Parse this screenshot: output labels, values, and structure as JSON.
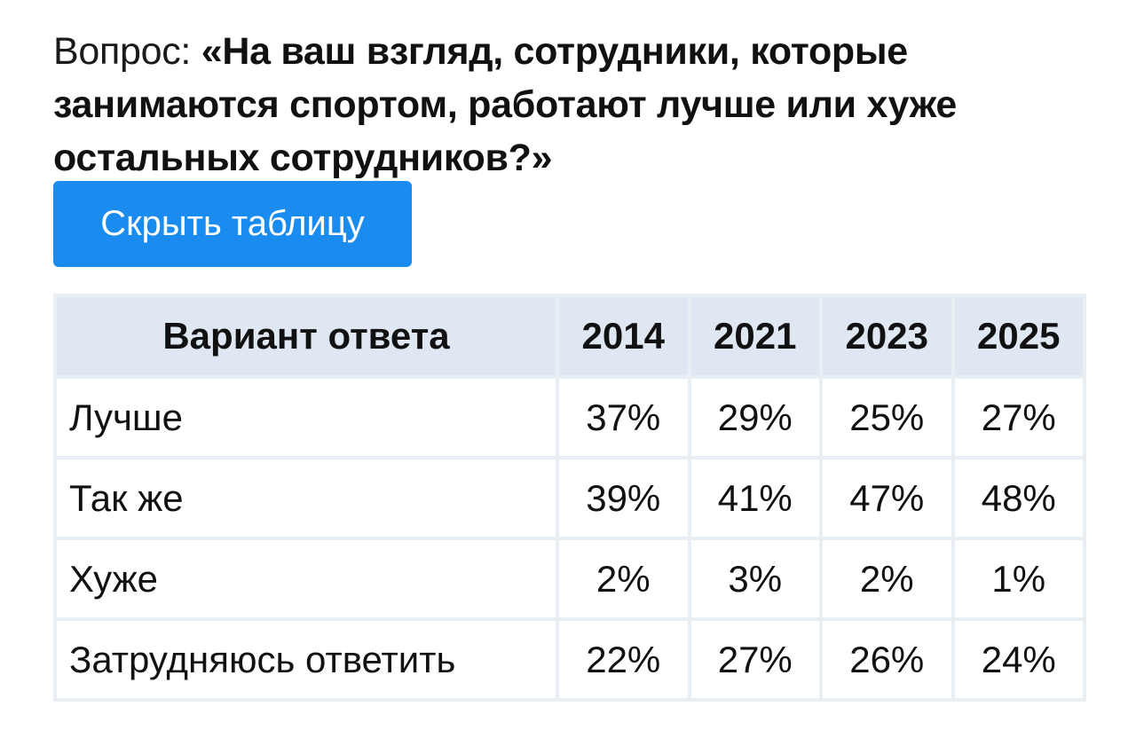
{
  "question": {
    "prefix": "Вопрос: ",
    "text": "«На ваш взгляд, сотрудники, которые занимаются спортом, работают лучше или хуже остальных сотрудников?»"
  },
  "toggle_button": {
    "label": "Скрыть таблицу",
    "color": "#1a8cf0"
  },
  "table": {
    "headers": [
      "Вариант ответа",
      "2014",
      "2021",
      "2023",
      "2025"
    ],
    "rows": [
      {
        "label": "Лучше",
        "values": [
          "37%",
          "29%",
          "25%",
          "27%"
        ]
      },
      {
        "label": "Так же",
        "values": [
          "39%",
          "41%",
          "47%",
          "48%"
        ]
      },
      {
        "label": "Хуже",
        "values": [
          "2%",
          "3%",
          "2%",
          "1%"
        ]
      },
      {
        "label": "Затрудняюсь ответить",
        "values": [
          "22%",
          "27%",
          "26%",
          "24%"
        ]
      }
    ],
    "header_bg": "#dfe7f3",
    "border_color": "#e9eef4"
  }
}
